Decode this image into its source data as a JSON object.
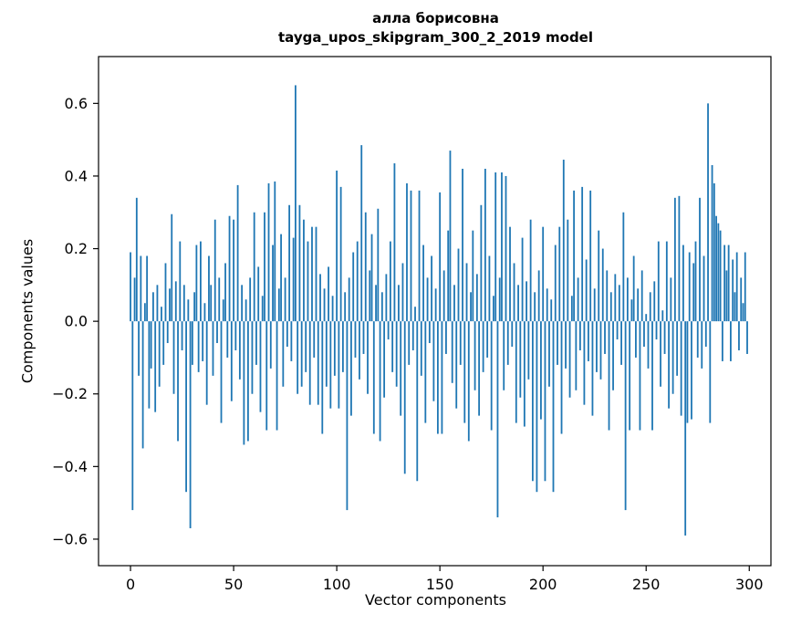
{
  "figure": {
    "background": "#ffffff",
    "title_line1": "алла борисовна",
    "title_line2": "tayga_upos_skipgram_300_2_2019 model",
    "xlabel": "Vector components",
    "ylabel": "Components values"
  },
  "chart_data": {
    "type": "bar",
    "title": "алла борисовна\ntayga_upos_skipgram_300_2_2019 model",
    "xlabel": "Vector components",
    "ylabel": "Components values",
    "legend": null,
    "grid": false,
    "bar_color": "#1f77b4",
    "xlim": [
      -15.5,
      310.5
    ],
    "ylim": [
      -0.673,
      0.729
    ],
    "xticks": [
      0,
      50,
      100,
      150,
      200,
      250,
      300
    ],
    "yticks": [
      -0.6,
      -0.4,
      -0.2,
      0.0,
      0.2,
      0.4,
      0.6
    ],
    "x_start": 0,
    "values": [
      0.19,
      -0.52,
      0.12,
      0.34,
      -0.15,
      0.18,
      -0.35,
      0.05,
      0.18,
      -0.24,
      -0.13,
      0.08,
      -0.25,
      0.1,
      -0.18,
      0.04,
      -0.12,
      0.16,
      -0.06,
      0.09,
      0.295,
      -0.2,
      0.11,
      -0.33,
      0.22,
      -0.08,
      0.1,
      -0.47,
      0.06,
      -0.57,
      -0.12,
      0.08,
      0.21,
      -0.14,
      0.22,
      -0.11,
      0.05,
      -0.23,
      0.18,
      0.1,
      -0.15,
      0.28,
      -0.06,
      0.12,
      -0.28,
      0.06,
      0.16,
      -0.1,
      0.29,
      -0.22,
      0.28,
      -0.08,
      0.375,
      -0.16,
      0.1,
      -0.34,
      0.06,
      -0.33,
      0.12,
      -0.2,
      0.3,
      -0.12,
      0.15,
      -0.25,
      0.07,
      0.3,
      -0.3,
      0.38,
      -0.13,
      0.21,
      0.385,
      -0.3,
      0.09,
      0.24,
      -0.18,
      0.12,
      -0.07,
      0.32,
      -0.11,
      0.23,
      0.65,
      -0.2,
      0.32,
      -0.18,
      0.28,
      -0.14,
      0.22,
      -0.23,
      0.26,
      -0.1,
      0.26,
      -0.23,
      0.13,
      -0.31,
      0.09,
      -0.18,
      0.15,
      -0.24,
      0.07,
      -0.15,
      0.415,
      -0.24,
      0.37,
      -0.14,
      0.08,
      -0.52,
      0.12,
      -0.26,
      0.19,
      -0.1,
      0.22,
      -0.16,
      0.485,
      -0.09,
      0.3,
      -0.2,
      0.14,
      0.24,
      -0.31,
      0.1,
      0.31,
      -0.33,
      0.08,
      -0.21,
      0.13,
      -0.05,
      0.22,
      -0.14,
      0.435,
      -0.18,
      0.1,
      -0.26,
      0.16,
      -0.42,
      0.38,
      -0.12,
      0.36,
      -0.08,
      0.04,
      -0.44,
      0.36,
      -0.15,
      0.21,
      -0.28,
      0.12,
      -0.06,
      0.18,
      -0.22,
      0.09,
      -0.31,
      0.355,
      -0.31,
      0.14,
      -0.09,
      0.25,
      0.47,
      -0.17,
      0.1,
      -0.24,
      0.2,
      -0.12,
      0.42,
      -0.28,
      0.16,
      -0.33,
      0.08,
      0.25,
      -0.19,
      0.13,
      -0.26,
      0.32,
      -0.14,
      0.42,
      -0.1,
      0.18,
      -0.3,
      0.07,
      0.41,
      -0.54,
      0.12,
      0.41,
      -0.19,
      0.4,
      -0.12,
      0.26,
      -0.07,
      0.16,
      -0.28,
      0.1,
      -0.21,
      0.23,
      -0.29,
      0.11,
      -0.16,
      0.28,
      -0.44,
      0.08,
      -0.47,
      0.14,
      -0.27,
      0.26,
      -0.44,
      0.09,
      -0.18,
      0.06,
      -0.47,
      0.21,
      -0.12,
      0.26,
      -0.31,
      0.445,
      -0.13,
      0.28,
      -0.21,
      0.07,
      0.36,
      -0.19,
      0.12,
      -0.08,
      0.37,
      -0.23,
      0.17,
      -0.11,
      0.36,
      -0.26,
      0.09,
      -0.14,
      0.25,
      -0.16,
      0.2,
      -0.09,
      0.14,
      -0.3,
      0.08,
      -0.19,
      0.13,
      -0.05,
      0.1,
      -0.12,
      0.3,
      -0.52,
      0.12,
      -0.3,
      0.06,
      0.18,
      -0.1,
      0.09,
      -0.3,
      0.14,
      -0.07,
      0.02,
      -0.13,
      0.08,
      -0.3,
      0.11,
      -0.05,
      0.22,
      -0.18,
      0.03,
      -0.09,
      0.22,
      -0.24,
      0.12,
      -0.2,
      0.34,
      -0.15,
      0.345,
      -0.26,
      0.21,
      -0.59,
      -0.28,
      0.19,
      -0.27,
      0.16,
      0.22,
      -0.1,
      0.34,
      -0.13,
      0.18,
      -0.07,
      0.6,
      -0.28,
      0.43,
      0.38,
      0.29,
      0.27,
      0.25,
      -0.11,
      0.21,
      0.14,
      0.21,
      -0.11,
      0.17,
      0.08,
      0.19,
      -0.08,
      0.12,
      0.05,
      0.19,
      -0.09
    ]
  }
}
